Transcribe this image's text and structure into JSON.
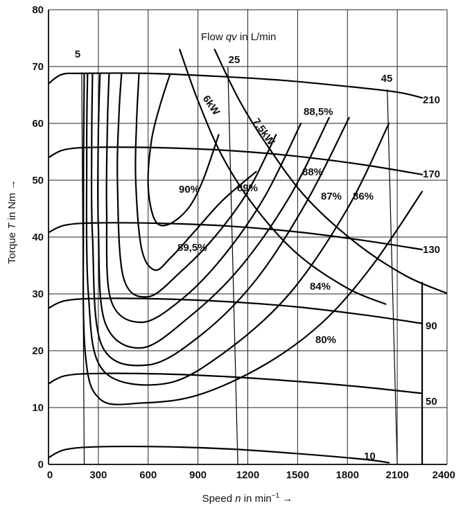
{
  "chart_data": {
    "type": "line",
    "xlabel_prefix": "Speed ",
    "xlabel_var": "n",
    "xlabel_suffix": " in min",
    "xlabel_exp": "−1",
    "xlabel_arrow": " →",
    "ylabel_prefix": "Torque ",
    "ylabel_var": "T",
    "ylabel_suffix": " in Nm →",
    "xlim": [
      0,
      2400
    ],
    "ylim": [
      0,
      80
    ],
    "x_ticks": [
      0,
      300,
      600,
      900,
      1200,
      1500,
      1800,
      2100,
      2400
    ],
    "y_ticks": [
      0,
      10,
      20,
      30,
      40,
      50,
      60,
      70,
      80
    ],
    "grid": true,
    "flow_title_prefix": "Flow ",
    "flow_title_var": "qv",
    "flow_title_suffix": "  in L/min",
    "pressure_curves": [
      {
        "label": "210",
        "points": [
          [
            0,
            67
          ],
          [
            80,
            68.6
          ],
          [
            200,
            68.8
          ],
          [
            600,
            68.8
          ],
          [
            1000,
            68.3
          ],
          [
            1400,
            67.6
          ],
          [
            1800,
            66.5
          ],
          [
            2100,
            65.5
          ],
          [
            2250,
            64.5
          ]
        ]
      },
      {
        "label": "170",
        "points": [
          [
            0,
            54
          ],
          [
            100,
            55.4
          ],
          [
            300,
            55.8
          ],
          [
            700,
            55.7
          ],
          [
            1100,
            55.2
          ],
          [
            1500,
            54.2
          ],
          [
            1900,
            52.7
          ],
          [
            2250,
            51
          ]
        ]
      },
      {
        "label": "130",
        "points": [
          [
            0,
            40.8
          ],
          [
            100,
            42.1
          ],
          [
            300,
            42.5
          ],
          [
            700,
            42.4
          ],
          [
            1100,
            41.9
          ],
          [
            1500,
            40.9
          ],
          [
            1900,
            39.4
          ],
          [
            2250,
            37.8
          ]
        ]
      },
      {
        "label": "90",
        "points": [
          [
            0,
            27.5
          ],
          [
            100,
            28.8
          ],
          [
            300,
            29.2
          ],
          [
            700,
            29.1
          ],
          [
            1100,
            28.6
          ],
          [
            1500,
            27.7
          ],
          [
            1900,
            26.3
          ],
          [
            2250,
            24.8
          ]
        ]
      },
      {
        "label": "50",
        "points": [
          [
            0,
            14.2
          ],
          [
            100,
            15.6
          ],
          [
            300,
            16
          ],
          [
            700,
            15.9
          ],
          [
            1100,
            15.4
          ],
          [
            1500,
            14.6
          ],
          [
            1900,
            13.6
          ],
          [
            2250,
            12.5
          ]
        ]
      },
      {
        "label": "10",
        "points": [
          [
            0,
            1.2
          ],
          [
            100,
            2.6
          ],
          [
            300,
            3.1
          ],
          [
            700,
            3.1
          ],
          [
            1100,
            2.7
          ],
          [
            1500,
            1.9
          ],
          [
            1900,
            0.9
          ],
          [
            2050,
            0.3
          ]
        ]
      }
    ],
    "flow_lines": [
      {
        "label": "5",
        "points": [
          [
            200,
            69
          ],
          [
            215,
            0
          ]
        ]
      },
      {
        "label": "25",
        "points": [
          [
            1080,
            70
          ],
          [
            1140,
            0
          ]
        ]
      },
      {
        "label": "45",
        "points": [
          [
            2040,
            66
          ],
          [
            2100,
            0
          ]
        ]
      }
    ],
    "power_curves": [
      {
        "label": "6kW",
        "points": [
          [
            790,
            73
          ],
          [
            900,
            64
          ],
          [
            1050,
            54
          ],
          [
            1250,
            45
          ],
          [
            1500,
            37
          ],
          [
            1800,
            31
          ],
          [
            2030,
            28.2
          ]
        ]
      },
      {
        "label": "7,5kW",
        "points": [
          [
            1000,
            73
          ],
          [
            1150,
            64
          ],
          [
            1320,
            56
          ],
          [
            1550,
            47
          ],
          [
            1850,
            39
          ],
          [
            2150,
            33.2
          ],
          [
            2400,
            30.1
          ]
        ]
      }
    ],
    "efficiency_contours": [
      {
        "label": "90%",
        "points": [
          [
            1025,
            58
          ],
          [
            930,
            50
          ],
          [
            840,
            45
          ],
          [
            720,
            42.2
          ],
          [
            640,
            43
          ],
          [
            600,
            49
          ],
          [
            620,
            57
          ],
          [
            670,
            63
          ],
          [
            730,
            68.5
          ]
        ]
      },
      {
        "label": "89,5%",
        "points": [
          [
            1250,
            51.5
          ],
          [
            1050,
            46.5
          ],
          [
            880,
            41
          ],
          [
            740,
            36.5
          ],
          [
            640,
            34.2
          ],
          [
            560,
            38
          ],
          [
            525,
            50
          ],
          [
            530,
            60
          ],
          [
            545,
            68.8
          ]
        ]
      },
      {
        "label": "89%",
        "points": [
          [
            1370,
            58
          ],
          [
            1200,
            48
          ],
          [
            1000,
            40
          ],
          [
            800,
            34
          ],
          [
            600,
            29.5
          ],
          [
            450,
            33
          ],
          [
            415,
            50
          ],
          [
            425,
            62
          ],
          [
            440,
            68.8
          ]
        ]
      },
      {
        "label": "88%",
        "points": [
          [
            1520,
            60
          ],
          [
            1300,
            47
          ],
          [
            1050,
            36.5
          ],
          [
            800,
            29
          ],
          [
            560,
            25
          ],
          [
            375,
            29
          ],
          [
            350,
            45
          ],
          [
            355,
            60
          ],
          [
            365,
            68.8
          ]
        ]
      },
      {
        "label": "87%",
        "points": [
          [
            1690,
            61
          ],
          [
            1450,
            47
          ],
          [
            1150,
            34.5
          ],
          [
            850,
            26
          ],
          [
            560,
            20.5
          ],
          [
            340,
            25
          ],
          [
            300,
            42
          ],
          [
            300,
            58
          ],
          [
            310,
            68.8
          ]
        ]
      },
      {
        "label": "86%",
        "points": [
          [
            1810,
            61
          ],
          [
            1550,
            46
          ],
          [
            1250,
            32.5
          ],
          [
            920,
            22.8
          ],
          [
            600,
            17.5
          ],
          [
            320,
            21
          ],
          [
            265,
            40
          ],
          [
            260,
            56
          ],
          [
            265,
            68.8
          ]
        ]
      },
      {
        "label": "84%",
        "points": [
          [
            2050,
            60
          ],
          [
            1800,
            45
          ],
          [
            1450,
            30
          ],
          [
            1050,
            19.5
          ],
          [
            700,
            14.2
          ],
          [
            330,
            16.5
          ],
          [
            240,
            30
          ],
          [
            230,
            55
          ],
          [
            235,
            68.8
          ]
        ]
      },
      {
        "label": "80%",
        "points": [
          [
            2250,
            48
          ],
          [
            1950,
            35
          ],
          [
            1650,
            25
          ],
          [
            1300,
            17.5
          ],
          [
            900,
            12.2
          ],
          [
            560,
            10.8
          ],
          [
            310,
            11.5
          ],
          [
            220,
            20
          ],
          [
            210,
            45
          ],
          [
            215,
            68.8
          ]
        ]
      }
    ],
    "boundary": {
      "points": [
        [
          2250,
          0
        ],
        [
          2250,
          32
        ]
      ]
    },
    "inline_labels": {
      "flow_5": "5",
      "flow_25": "25",
      "flow_45": "45",
      "p210": "210",
      "p170": "170",
      "p130": "130",
      "p90": "90",
      "p50": "50",
      "p10": "10",
      "kw6": "6kW",
      "kw75": "7,5kW",
      "e90": "90%",
      "e895": "89,5%",
      "e89": "89%",
      "e885": "88,5%",
      "e88": "88%",
      "e87": "87%",
      "e86": "86%",
      "e84": "84%",
      "e80": "80%"
    }
  }
}
